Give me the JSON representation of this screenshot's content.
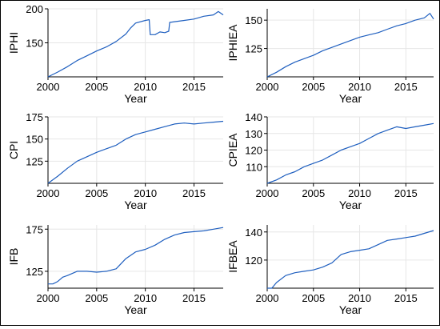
{
  "chart_data": [
    {
      "type": "line",
      "ylabel": "IPHI",
      "xlabel": "Year",
      "xlim": [
        2000,
        2018
      ],
      "ylim": [
        100,
        200
      ],
      "xticks": [
        2000,
        2005,
        2010,
        2015
      ],
      "yticks": [
        150,
        200
      ],
      "grid": true,
      "line_color": "#1f5fbf",
      "points": [
        [
          2000.0,
          100
        ],
        [
          2001.0,
          107
        ],
        [
          2002.0,
          115
        ],
        [
          2003.0,
          124
        ],
        [
          2004.0,
          131
        ],
        [
          2005.0,
          138
        ],
        [
          2006.0,
          144
        ],
        [
          2007.0,
          152
        ],
        [
          2008.0,
          163
        ],
        [
          2008.5,
          172
        ],
        [
          2009.0,
          179
        ],
        [
          2010.0,
          183
        ],
        [
          2010.4,
          184
        ],
        [
          2010.5,
          162
        ],
        [
          2011.0,
          162
        ],
        [
          2011.5,
          166
        ],
        [
          2012.0,
          165
        ],
        [
          2012.4,
          167
        ],
        [
          2012.5,
          180
        ],
        [
          2013.0,
          181
        ],
        [
          2014.0,
          183
        ],
        [
          2015.0,
          185
        ],
        [
          2016.0,
          189
        ],
        [
          2017.0,
          191
        ],
        [
          2017.5,
          196
        ],
        [
          2018.0,
          191
        ]
      ]
    },
    {
      "type": "line",
      "ylabel": "IPHIEA",
      "xlabel": "Year",
      "xlim": [
        2000,
        2018
      ],
      "ylim": [
        100,
        160
      ],
      "xticks": [
        2000,
        2005,
        2010,
        2015
      ],
      "yticks": [
        125,
        150
      ],
      "grid": true,
      "line_color": "#1f5fbf",
      "points": [
        [
          2000.0,
          100
        ],
        [
          2001.0,
          104
        ],
        [
          2002.0,
          109
        ],
        [
          2003.0,
          113
        ],
        [
          2004.0,
          116
        ],
        [
          2005.0,
          119
        ],
        [
          2006.0,
          123
        ],
        [
          2007.0,
          126
        ],
        [
          2008.0,
          129
        ],
        [
          2009.0,
          132
        ],
        [
          2010.0,
          135
        ],
        [
          2011.0,
          137
        ],
        [
          2012.0,
          139
        ],
        [
          2013.0,
          142
        ],
        [
          2014.0,
          145
        ],
        [
          2015.0,
          147
        ],
        [
          2016.0,
          150
        ],
        [
          2017.0,
          152
        ],
        [
          2017.6,
          156
        ],
        [
          2018.0,
          151
        ]
      ]
    },
    {
      "type": "line",
      "ylabel": "CPI",
      "xlabel": "Year",
      "xlim": [
        2000,
        2018
      ],
      "ylim": [
        100,
        175
      ],
      "xticks": [
        2000,
        2005,
        2010,
        2015
      ],
      "yticks": [
        125,
        150,
        175
      ],
      "grid": true,
      "line_color": "#1f5fbf",
      "points": [
        [
          2000.0,
          100
        ],
        [
          2001.0,
          108
        ],
        [
          2002.0,
          117
        ],
        [
          2003.0,
          125
        ],
        [
          2004.0,
          130
        ],
        [
          2005.0,
          135
        ],
        [
          2006.0,
          139
        ],
        [
          2007.0,
          143
        ],
        [
          2008.0,
          150
        ],
        [
          2009.0,
          155
        ],
        [
          2010.0,
          158
        ],
        [
          2011.0,
          161
        ],
        [
          2012.0,
          164
        ],
        [
          2013.0,
          167
        ],
        [
          2014.0,
          168
        ],
        [
          2015.0,
          167
        ],
        [
          2016.0,
          168
        ],
        [
          2017.0,
          169
        ],
        [
          2018.0,
          170
        ]
      ]
    },
    {
      "type": "line",
      "ylabel": "CPIEA",
      "xlabel": "Year",
      "xlim": [
        2000,
        2018
      ],
      "ylim": [
        100,
        140
      ],
      "xticks": [
        2000,
        2005,
        2010,
        2015
      ],
      "yticks": [
        110,
        120,
        130,
        140
      ],
      "grid": true,
      "line_color": "#1f5fbf",
      "points": [
        [
          2000.0,
          100
        ],
        [
          2001.0,
          102
        ],
        [
          2002.0,
          105
        ],
        [
          2003.0,
          107
        ],
        [
          2004.0,
          110
        ],
        [
          2005.0,
          112
        ],
        [
          2006.0,
          114
        ],
        [
          2007.0,
          117
        ],
        [
          2008.0,
          120
        ],
        [
          2009.0,
          122
        ],
        [
          2010.0,
          124
        ],
        [
          2011.0,
          127
        ],
        [
          2012.0,
          130
        ],
        [
          2013.0,
          132
        ],
        [
          2014.0,
          134
        ],
        [
          2015.0,
          133
        ],
        [
          2016.0,
          134
        ],
        [
          2017.0,
          135
        ],
        [
          2018.0,
          136
        ]
      ]
    },
    {
      "type": "line",
      "ylabel": "IFB",
      "xlabel": "Year",
      "xlim": [
        2000,
        2018
      ],
      "ylim": [
        105,
        180
      ],
      "xticks": [
        2000,
        2005,
        2010,
        2015
      ],
      "yticks": [
        125,
        175
      ],
      "grid": true,
      "line_color": "#1f5fbf",
      "points": [
        [
          2000.0,
          110
        ],
        [
          2000.5,
          110
        ],
        [
          2001.0,
          113
        ],
        [
          2001.5,
          118
        ],
        [
          2002.0,
          120
        ],
        [
          2003.0,
          125
        ],
        [
          2004.0,
          125
        ],
        [
          2005.0,
          124
        ],
        [
          2006.0,
          125
        ],
        [
          2007.0,
          128
        ],
        [
          2008.0,
          140
        ],
        [
          2009.0,
          148
        ],
        [
          2010.0,
          151
        ],
        [
          2011.0,
          156
        ],
        [
          2012.0,
          163
        ],
        [
          2013.0,
          168
        ],
        [
          2014.0,
          171
        ],
        [
          2015.0,
          172
        ],
        [
          2016.0,
          173
        ],
        [
          2017.0,
          175
        ],
        [
          2018.0,
          177
        ]
      ]
    },
    {
      "type": "line",
      "ylabel": "IFBEA",
      "xlabel": "Year",
      "xlim": [
        2000,
        2018
      ],
      "ylim": [
        100,
        145
      ],
      "xticks": [
        2000,
        2005,
        2010,
        2015
      ],
      "yticks": [
        120,
        140
      ],
      "grid": true,
      "line_color": "#1f5fbf",
      "points": [
        [
          2000.0,
          100
        ],
        [
          2000.5,
          100
        ],
        [
          2001.0,
          104
        ],
        [
          2002.0,
          109
        ],
        [
          2003.0,
          111
        ],
        [
          2004.0,
          112
        ],
        [
          2005.0,
          113
        ],
        [
          2006.0,
          115
        ],
        [
          2007.0,
          118
        ],
        [
          2008.0,
          124
        ],
        [
          2009.0,
          126
        ],
        [
          2010.0,
          127
        ],
        [
          2011.0,
          128
        ],
        [
          2012.0,
          131
        ],
        [
          2013.0,
          134
        ],
        [
          2014.0,
          135
        ],
        [
          2015.0,
          136
        ],
        [
          2016.0,
          137
        ],
        [
          2017.0,
          139
        ],
        [
          2018.0,
          141
        ]
      ]
    }
  ]
}
